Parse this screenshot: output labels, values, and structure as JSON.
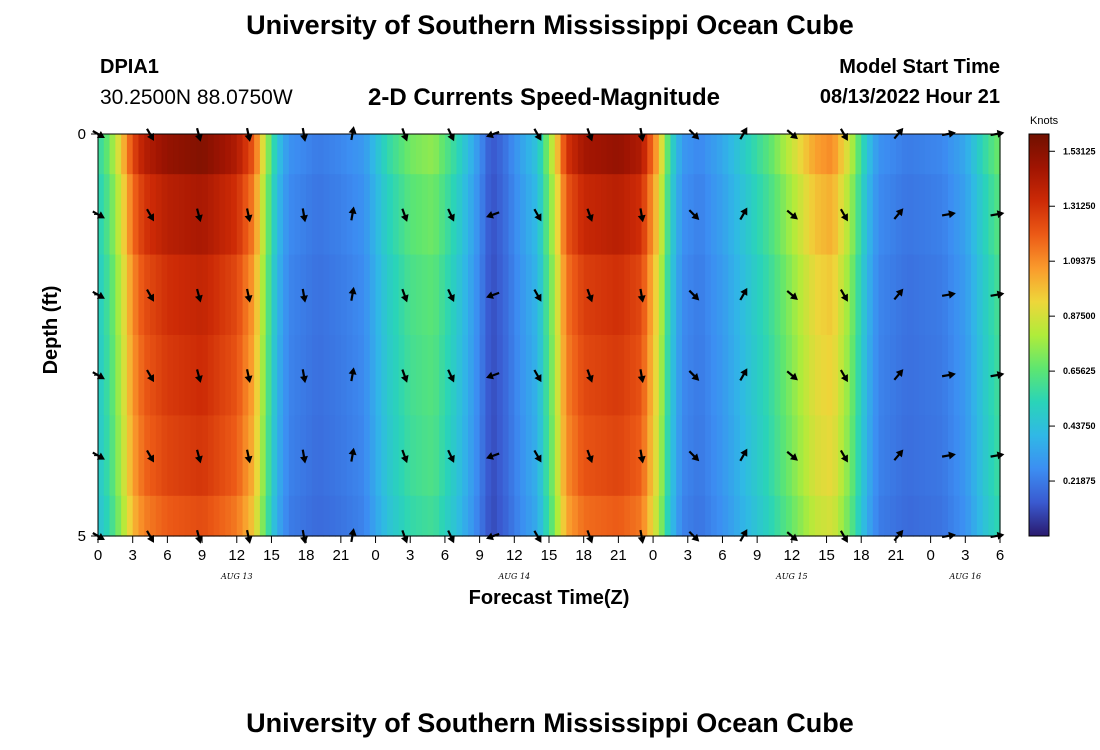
{
  "page": {
    "title_top": "University of Southern Mississippi Ocean Cube",
    "title_bottom": "University of Southern Mississippi Ocean Cube",
    "station": "DPIA1",
    "coordinates": "30.2500N  88.0750W",
    "subtitle": "2-D Currents Speed-Magnitude",
    "model_start_label": "Model Start Time",
    "model_start_value": "08/13/2022 Hour 21"
  },
  "chart_data": {
    "type": "heatmap",
    "title": "2-D Currents Speed-Magnitude",
    "xlabel": "Forecast Time(Z)",
    "ylabel": "Depth (ft)",
    "xlim": [
      0,
      78
    ],
    "ylim": [
      5,
      0
    ],
    "x_ticks": [
      {
        "x": 0,
        "label": "0"
      },
      {
        "x": 3,
        "label": "3"
      },
      {
        "x": 6,
        "label": "6"
      },
      {
        "x": 9,
        "label": "9"
      },
      {
        "x": 12,
        "label": "12"
      },
      {
        "x": 15,
        "label": "15"
      },
      {
        "x": 18,
        "label": "18"
      },
      {
        "x": 21,
        "label": "21"
      },
      {
        "x": 24,
        "label": "0"
      },
      {
        "x": 27,
        "label": "3"
      },
      {
        "x": 30,
        "label": "6"
      },
      {
        "x": 33,
        "label": "9"
      },
      {
        "x": 36,
        "label": "12"
      },
      {
        "x": 39,
        "label": "15"
      },
      {
        "x": 42,
        "label": "18"
      },
      {
        "x": 45,
        "label": "21"
      },
      {
        "x": 48,
        "label": "0"
      },
      {
        "x": 51,
        "label": "3"
      },
      {
        "x": 54,
        "label": "6"
      },
      {
        "x": 57,
        "label": "9"
      },
      {
        "x": 60,
        "label": "12"
      },
      {
        "x": 63,
        "label": "15"
      },
      {
        "x": 66,
        "label": "18"
      },
      {
        "x": 69,
        "label": "21"
      },
      {
        "x": 72,
        "label": "0"
      },
      {
        "x": 75,
        "label": "3"
      },
      {
        "x": 78,
        "label": "6"
      }
    ],
    "date_labels": [
      {
        "x": 12,
        "label": "AUG 13"
      },
      {
        "x": 36,
        "label": "AUG 14"
      },
      {
        "x": 60,
        "label": "AUG 15"
      },
      {
        "x": 75,
        "label": "AUG 16"
      }
    ],
    "y_ticks": [
      {
        "y": 0,
        "label": "0"
      },
      {
        "y": 5,
        "label": "5"
      }
    ],
    "colorbar": {
      "unit": "Knots",
      "min": 0.0,
      "max": 1.6,
      "ticks": [
        "1.53125",
        "1.31250",
        "1.09375",
        "0.87500",
        "0.65625",
        "0.43750",
        "0.21875"
      ],
      "tick_values": [
        1.53125,
        1.3125,
        1.09375,
        0.875,
        0.65625,
        0.4375,
        0.21875
      ],
      "colors": [
        "#2a1a6e",
        "#3a5ad0",
        "#3c8ef2",
        "#30b8e6",
        "#2ad4b8",
        "#5ee670",
        "#b0ec3a",
        "#eed63a",
        "#fa9a2c",
        "#ec5a16",
        "#cc2a06",
        "#a01402",
        "#701000"
      ]
    },
    "depth_bands": [
      0,
      0.5,
      1.5,
      2.5,
      3.5,
      4.5,
      5
    ],
    "speed_profile": [
      {
        "x": 0,
        "v": 0.55
      },
      {
        "x": 1,
        "v": 0.7
      },
      {
        "x": 2,
        "v": 0.95
      },
      {
        "x": 3,
        "v": 1.25
      },
      {
        "x": 4,
        "v": 1.4
      },
      {
        "x": 6,
        "v": 1.5
      },
      {
        "x": 9,
        "v": 1.55
      },
      {
        "x": 12,
        "v": 1.42
      },
      {
        "x": 13.5,
        "v": 1.2
      },
      {
        "x": 14.5,
        "v": 0.8
      },
      {
        "x": 15.5,
        "v": 0.45
      },
      {
        "x": 16.5,
        "v": 0.28
      },
      {
        "x": 19,
        "v": 0.22
      },
      {
        "x": 21,
        "v": 0.25
      },
      {
        "x": 23,
        "v": 0.3
      },
      {
        "x": 25,
        "v": 0.55
      },
      {
        "x": 27,
        "v": 0.7
      },
      {
        "x": 29,
        "v": 0.75
      },
      {
        "x": 31,
        "v": 0.55
      },
      {
        "x": 32.5,
        "v": 0.35
      },
      {
        "x": 34,
        "v": 0.12
      },
      {
        "x": 35,
        "v": 0.18
      },
      {
        "x": 36.5,
        "v": 0.32
      },
      {
        "x": 38,
        "v": 0.45
      },
      {
        "x": 39.5,
        "v": 0.9
      },
      {
        "x": 40.5,
        "v": 1.3
      },
      {
        "x": 42,
        "v": 1.45
      },
      {
        "x": 45,
        "v": 1.5
      },
      {
        "x": 47,
        "v": 1.42
      },
      {
        "x": 48.5,
        "v": 1.0
      },
      {
        "x": 49.5,
        "v": 0.55
      },
      {
        "x": 50.5,
        "v": 0.3
      },
      {
        "x": 52,
        "v": 0.25
      },
      {
        "x": 54,
        "v": 0.35
      },
      {
        "x": 56,
        "v": 0.5
      },
      {
        "x": 58,
        "v": 0.65
      },
      {
        "x": 60,
        "v": 0.85
      },
      {
        "x": 62,
        "v": 1.05
      },
      {
        "x": 63.5,
        "v": 1.1
      },
      {
        "x": 65,
        "v": 0.85
      },
      {
        "x": 66.5,
        "v": 0.45
      },
      {
        "x": 67.5,
        "v": 0.28
      },
      {
        "x": 70,
        "v": 0.22
      },
      {
        "x": 73,
        "v": 0.25
      },
      {
        "x": 75,
        "v": 0.35
      },
      {
        "x": 77,
        "v": 0.6
      },
      {
        "x": 78,
        "v": 0.7
      }
    ],
    "band_factors": [
      1.0,
      0.93,
      0.88,
      0.86,
      0.84,
      0.8
    ],
    "vector_columns": [
      0,
      4.5,
      8.7,
      13,
      17.8,
      22,
      26.5,
      30.5,
      34.2,
      38,
      42.5,
      47,
      51.5,
      55.8,
      60,
      64.5,
      69.2,
      73.5,
      77.7
    ],
    "vector_depths": [
      0,
      1,
      2,
      3,
      4,
      5
    ],
    "vector_directions_deg": [
      120,
      150,
      165,
      168,
      170,
      10,
      160,
      155,
      250,
      150,
      160,
      170,
      135,
      30,
      130,
      150,
      40,
      80,
      80
    ]
  }
}
